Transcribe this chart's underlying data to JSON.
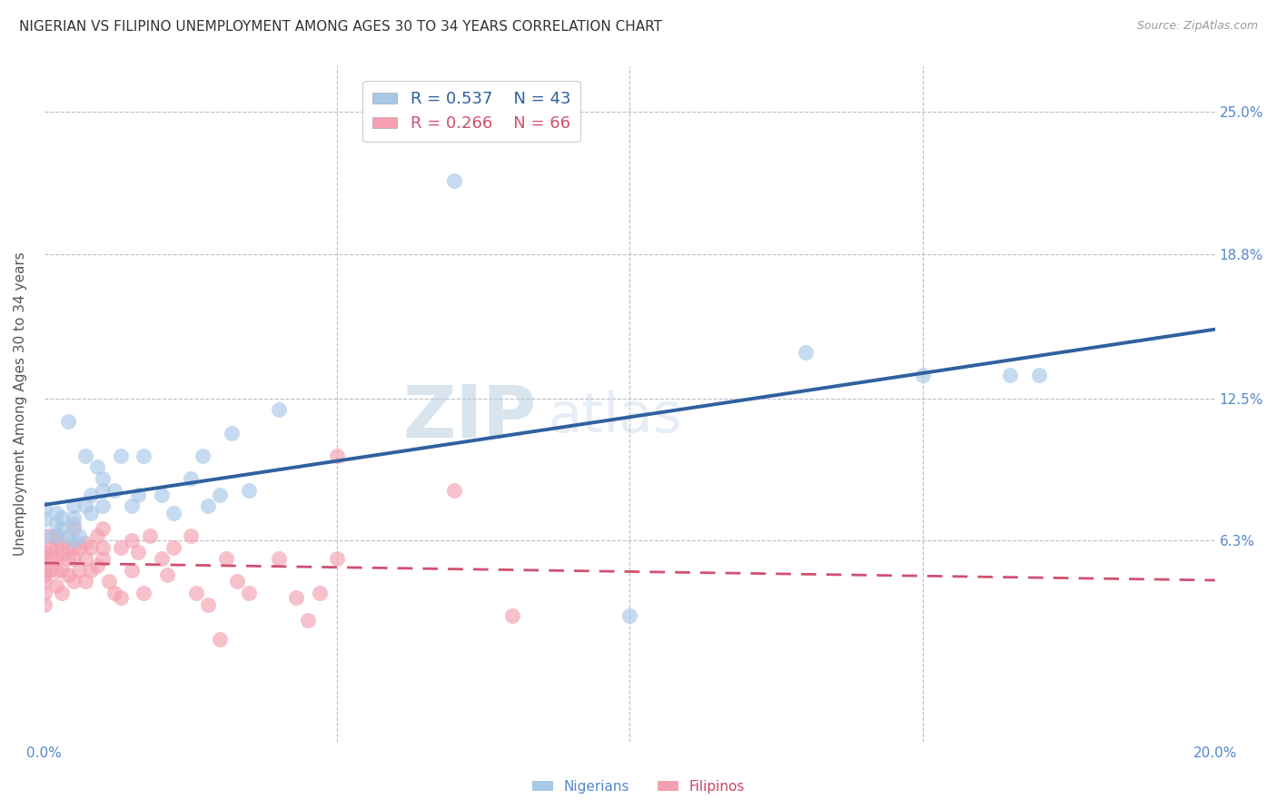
{
  "title": "NIGERIAN VS FILIPINO UNEMPLOYMENT AMONG AGES 30 TO 34 YEARS CORRELATION CHART",
  "source": "Source: ZipAtlas.com",
  "ylabel": "Unemployment Among Ages 30 to 34 years",
  "xlabel": "",
  "xlim": [
    0.0,
    0.2
  ],
  "ylim": [
    -0.025,
    0.27
  ],
  "ytick_labels": [
    "6.3%",
    "12.5%",
    "18.8%",
    "25.0%"
  ],
  "ytick_values": [
    0.063,
    0.125,
    0.188,
    0.25
  ],
  "xtick_labels": [
    "0.0%",
    "",
    "",
    "",
    "20.0%"
  ],
  "xtick_values": [
    0.0,
    0.05,
    0.1,
    0.15,
    0.2
  ],
  "nigerian_R": 0.537,
  "nigerian_N": 43,
  "filipino_R": 0.266,
  "filipino_N": 66,
  "nigerian_color": "#a8c8e8",
  "filipino_color": "#f4a0b0",
  "nigerian_line_color": "#3060a0",
  "filipino_line_color": "#d05070",
  "watermark_zip": "ZIP",
  "watermark_atlas": "atlas",
  "nigerian_x": [
    0.0,
    0.0,
    0.0,
    0.002,
    0.002,
    0.002,
    0.003,
    0.003,
    0.004,
    0.004,
    0.005,
    0.005,
    0.005,
    0.005,
    0.006,
    0.007,
    0.007,
    0.008,
    0.008,
    0.009,
    0.01,
    0.01,
    0.01,
    0.012,
    0.013,
    0.015,
    0.016,
    0.017,
    0.02,
    0.022,
    0.025,
    0.027,
    0.028,
    0.03,
    0.032,
    0.035,
    0.04,
    0.07,
    0.1,
    0.13,
    0.15,
    0.165,
    0.17
  ],
  "nigerian_y": [
    0.065,
    0.072,
    0.077,
    0.065,
    0.07,
    0.075,
    0.068,
    0.073,
    0.115,
    0.065,
    0.063,
    0.07,
    0.073,
    0.078,
    0.065,
    0.1,
    0.078,
    0.075,
    0.083,
    0.095,
    0.078,
    0.085,
    0.09,
    0.085,
    0.1,
    0.078,
    0.083,
    0.1,
    0.083,
    0.075,
    0.09,
    0.1,
    0.078,
    0.083,
    0.11,
    0.085,
    0.12,
    0.22,
    0.03,
    0.145,
    0.135,
    0.135,
    0.135
  ],
  "filipino_x": [
    0.0,
    0.0,
    0.0,
    0.0,
    0.0,
    0.0,
    0.0,
    0.001,
    0.001,
    0.001,
    0.001,
    0.002,
    0.002,
    0.002,
    0.002,
    0.002,
    0.003,
    0.003,
    0.003,
    0.003,
    0.004,
    0.004,
    0.004,
    0.005,
    0.005,
    0.005,
    0.005,
    0.006,
    0.006,
    0.007,
    0.007,
    0.007,
    0.008,
    0.008,
    0.009,
    0.009,
    0.01,
    0.01,
    0.01,
    0.011,
    0.012,
    0.013,
    0.013,
    0.015,
    0.015,
    0.016,
    0.017,
    0.018,
    0.02,
    0.021,
    0.022,
    0.025,
    0.026,
    0.028,
    0.03,
    0.031,
    0.033,
    0.035,
    0.04,
    0.043,
    0.045,
    0.047,
    0.05,
    0.05,
    0.07,
    0.08
  ],
  "filipino_y": [
    0.045,
    0.048,
    0.05,
    0.055,
    0.058,
    0.04,
    0.035,
    0.05,
    0.055,
    0.06,
    0.065,
    0.043,
    0.05,
    0.055,
    0.06,
    0.065,
    0.04,
    0.05,
    0.057,
    0.062,
    0.048,
    0.055,
    0.06,
    0.045,
    0.055,
    0.06,
    0.068,
    0.05,
    0.06,
    0.045,
    0.055,
    0.062,
    0.05,
    0.06,
    0.052,
    0.065,
    0.055,
    0.06,
    0.068,
    0.045,
    0.04,
    0.038,
    0.06,
    0.05,
    0.063,
    0.058,
    0.04,
    0.065,
    0.055,
    0.048,
    0.06,
    0.065,
    0.04,
    0.035,
    0.02,
    0.055,
    0.045,
    0.04,
    0.055,
    0.038,
    0.028,
    0.04,
    0.1,
    0.055,
    0.085,
    0.03
  ]
}
